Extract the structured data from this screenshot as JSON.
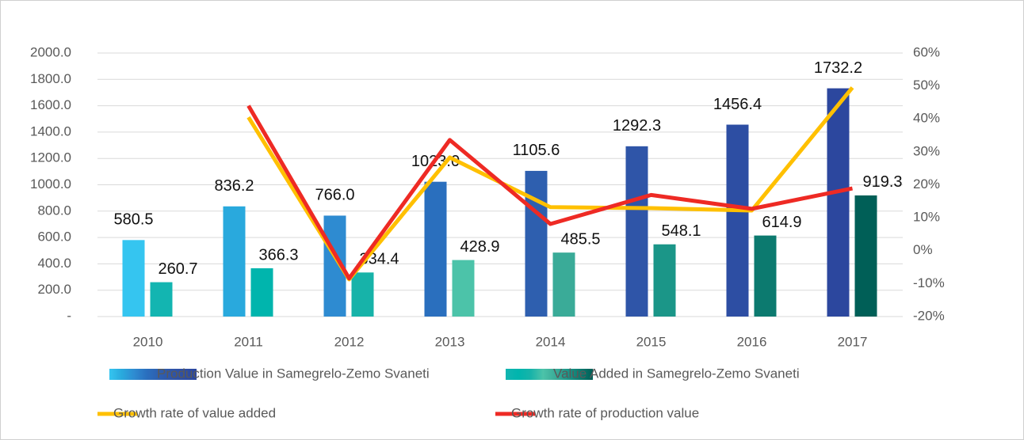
{
  "chart_data": {
    "type": "bar",
    "categories": [
      "2010",
      "2011",
      "2012",
      "2013",
      "2014",
      "2015",
      "2016",
      "2017"
    ],
    "series": [
      {
        "name": "Production Value in Samegrelo-Zemo Svaneti",
        "type": "bar",
        "colors": [
          "#35c5f0",
          "#29a9dd",
          "#2e8bd1",
          "#2a6fbe",
          "#2e5faf",
          "#2f55a8",
          "#2d4ea3",
          "#2c479e"
        ],
        "values": [
          580.5,
          836.2,
          766.0,
          1023.0,
          1105.6,
          1292.3,
          1456.4,
          1732.2
        ],
        "value_labels": [
          "580.5",
          "836.2",
          "766.0",
          "1023.0",
          "1105.6",
          "1292.3",
          "1456.4",
          "1732.2"
        ]
      },
      {
        "name": "Value Added in Samegrelo-Zemo Svaneti",
        "type": "bar",
        "colors": [
          "#13b5b1",
          "#00b5ad",
          "#17b3a9",
          "#4cc3a9",
          "#3aab98",
          "#1b9688",
          "#0c7a6f",
          "#005f57"
        ],
        "values": [
          260.7,
          366.3,
          334.4,
          428.9,
          485.5,
          548.1,
          614.9,
          919.3
        ],
        "value_labels": [
          "260.7",
          "366.3",
          "334.4",
          "428.9",
          "485.5",
          "548.1",
          "614.9",
          "919.3"
        ]
      },
      {
        "name": "Growth rate of value added",
        "type": "line",
        "axis": "y2",
        "color": "#ffc000",
        "values": [
          null,
          40.5,
          -8.7,
          28.3,
          13.2,
          12.9,
          12.2,
          49.5
        ]
      },
      {
        "name": "Growth rate of production value",
        "type": "line",
        "axis": "y2",
        "color": "#ee2a24",
        "values": [
          null,
          44.0,
          -8.4,
          33.6,
          8.1,
          16.9,
          12.7,
          18.9
        ]
      }
    ],
    "ylim": [
      0,
      2000
    ],
    "yticks": [
      {
        "value": 0,
        "label": "-"
      },
      {
        "value": 200,
        "label": "200.0"
      },
      {
        "value": 400,
        "label": "400.0"
      },
      {
        "value": 600,
        "label": "600.0"
      },
      {
        "value": 800,
        "label": "800.0"
      },
      {
        "value": 1000,
        "label": "1000.0"
      },
      {
        "value": 1200,
        "label": "1200.0"
      },
      {
        "value": 1400,
        "label": "1400.0"
      },
      {
        "value": 1600,
        "label": "1600.0"
      },
      {
        "value": 1800,
        "label": "1800.0"
      },
      {
        "value": 2000,
        "label": "2000.0"
      }
    ],
    "y2lim": [
      -20,
      60
    ],
    "y2ticks": [
      {
        "value": -20,
        "label": "-20%"
      },
      {
        "value": -10,
        "label": "-10%"
      },
      {
        "value": 0,
        "label": "0%"
      },
      {
        "value": 10,
        "label": "10%"
      },
      {
        "value": 20,
        "label": "20%"
      },
      {
        "value": 30,
        "label": "30%"
      },
      {
        "value": 40,
        "label": "40%"
      },
      {
        "value": 50,
        "label": "50%"
      },
      {
        "value": 60,
        "label": "60%"
      }
    ],
    "grid": true
  }
}
